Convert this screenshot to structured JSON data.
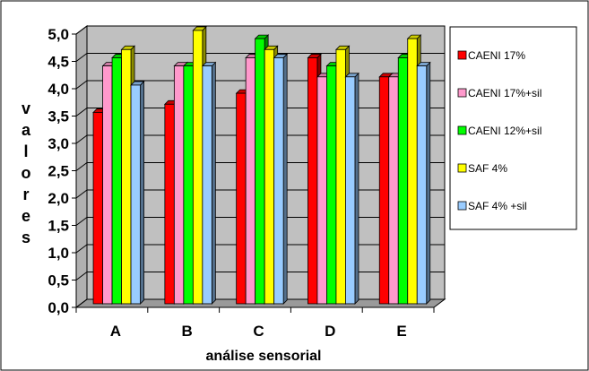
{
  "chart_data": {
    "type": "bar",
    "xlabel": "análise sensorial",
    "ylabel": "valores",
    "ylim": [
      0,
      5
    ],
    "y_ticks": [
      "0,0",
      "0,5",
      "1,0",
      "1,5",
      "2,0",
      "2,5",
      "3,0",
      "3,5",
      "4,0",
      "4,5",
      "5,0"
    ],
    "categories": [
      "A",
      "B",
      "C",
      "D",
      "E"
    ],
    "series": [
      {
        "name": "CAENI 17%",
        "color": "#ff0000",
        "values": [
          3.5,
          3.65,
          3.85,
          4.5,
          4.15
        ]
      },
      {
        "name": "CAENI 17%+sil",
        "color": "#ff99cc",
        "values": [
          4.35,
          4.35,
          4.5,
          4.15,
          4.15
        ]
      },
      {
        "name": "CAENI 12%+sil",
        "color": "#00ff00",
        "values": [
          4.5,
          4.35,
          4.85,
          4.35,
          4.5
        ]
      },
      {
        "name": "SAF 4%",
        "color": "#ffff00",
        "values": [
          4.65,
          5.0,
          4.65,
          4.65,
          4.85
        ]
      },
      {
        "name": "SAF 4% +sil",
        "color": "#99ccff",
        "values": [
          4.0,
          4.35,
          4.5,
          4.15,
          4.35
        ]
      }
    ],
    "grid": true,
    "legend_position": "right",
    "plot_background": "#c0c0c0",
    "style": "3d-bar"
  }
}
